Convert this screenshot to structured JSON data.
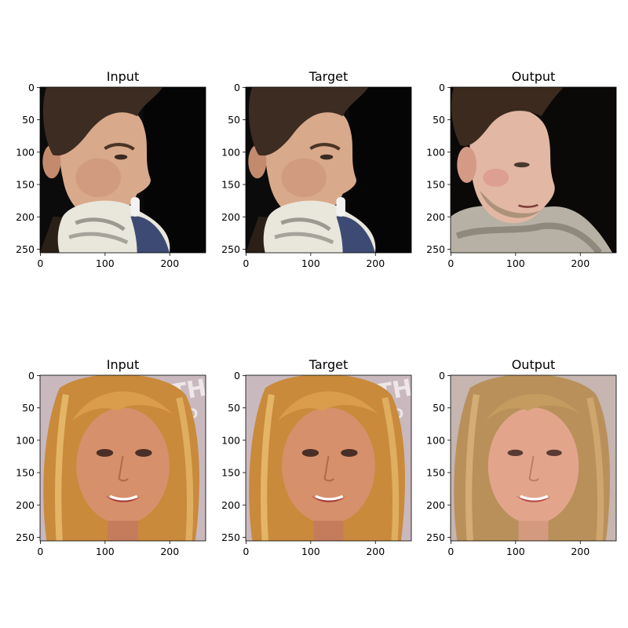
{
  "figure": {
    "rows": [
      {
        "subject": "young man in profile wearing goalkeeper gloves, dark background",
        "panels": [
          {
            "title": "Input",
            "variant": "photo"
          },
          {
            "title": "Target",
            "variant": "photo"
          },
          {
            "title": "Output",
            "variant": "generated"
          }
        ]
      },
      {
        "subject": "smiling blonde woman, pale background with text",
        "panels": [
          {
            "title": "Input",
            "variant": "photo"
          },
          {
            "title": "Target",
            "variant": "photo"
          },
          {
            "title": "Output",
            "variant": "generated"
          }
        ]
      }
    ],
    "x_ticks": [
      "0",
      "100",
      "200"
    ],
    "y_ticks": [
      "0",
      "50",
      "100",
      "150",
      "200",
      "250"
    ],
    "image_extent": [
      0,
      256
    ]
  }
}
